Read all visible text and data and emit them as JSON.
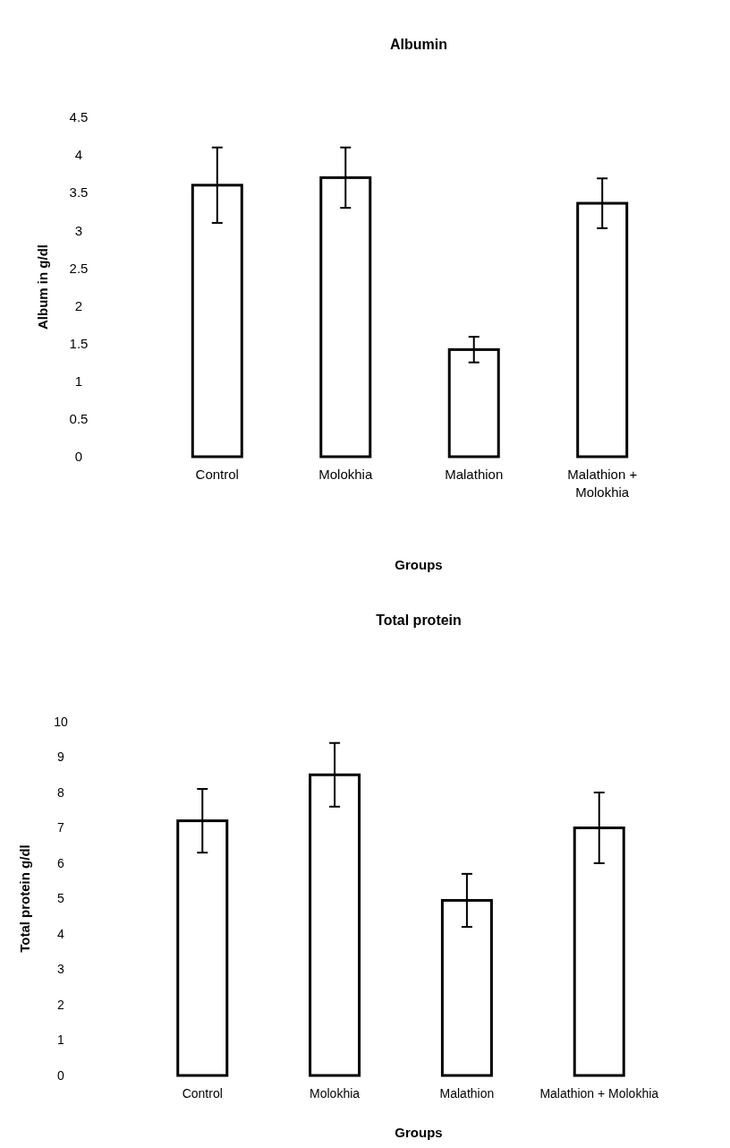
{
  "chart_data": [
    {
      "type": "bar",
      "title": "Albumin",
      "xlabel": "Groups",
      "ylabel": "Album in g/dl",
      "categories": [
        "Control",
        "Molokhia",
        "Malathion",
        "Malathion + Molokhia"
      ],
      "values": [
        3.6,
        3.7,
        1.42,
        3.36
      ],
      "errors": [
        0.5,
        0.4,
        0.17,
        0.33
      ],
      "color": "#ffffff",
      "ylim": [
        0,
        4.5
      ],
      "yticks": [
        0,
        0.5,
        1,
        1.5,
        2,
        2.5,
        3,
        3.5,
        4,
        4.5
      ],
      "grid": false
    },
    {
      "type": "bar",
      "title": "Total protein",
      "xlabel": "Groups",
      "ylabel": "Total protein g/dl",
      "categories": [
        "Control",
        "Molokhia",
        "Malathion",
        "Malathion + Molokhia"
      ],
      "values": [
        7.2,
        8.5,
        4.95,
        7.0
      ],
      "errors": [
        0.9,
        0.9,
        0.75,
        1.0
      ],
      "color": "#ffffff",
      "ylim": [
        0,
        10
      ],
      "yticks": [
        0,
        1,
        2,
        3,
        4,
        5,
        6,
        7,
        8,
        9,
        10
      ],
      "grid": false
    }
  ]
}
